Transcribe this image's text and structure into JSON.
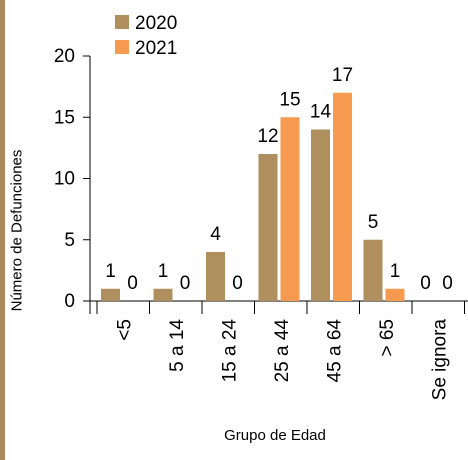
{
  "chart_data": {
    "type": "bar",
    "title": "",
    "xlabel": "Grupo de Edad",
    "ylabel": "Número de Defunciones",
    "categories": [
      "<5",
      "5 a 14",
      "15 a 24",
      "25 a 44",
      "45 a 64",
      "> 65",
      "Se ignora"
    ],
    "series": [
      {
        "name": "2020",
        "color": "#b08f5f",
        "values": [
          1,
          1,
          4,
          12,
          14,
          5,
          0
        ]
      },
      {
        "name": "2021",
        "color": "#f59a4f",
        "values": [
          0,
          0,
          0,
          15,
          17,
          1,
          0
        ]
      }
    ],
    "ylim": [
      0,
      20
    ],
    "yticks": [
      0,
      5,
      10,
      15,
      20
    ],
    "grid": false,
    "legend": "top-left",
    "data_labels": true
  }
}
